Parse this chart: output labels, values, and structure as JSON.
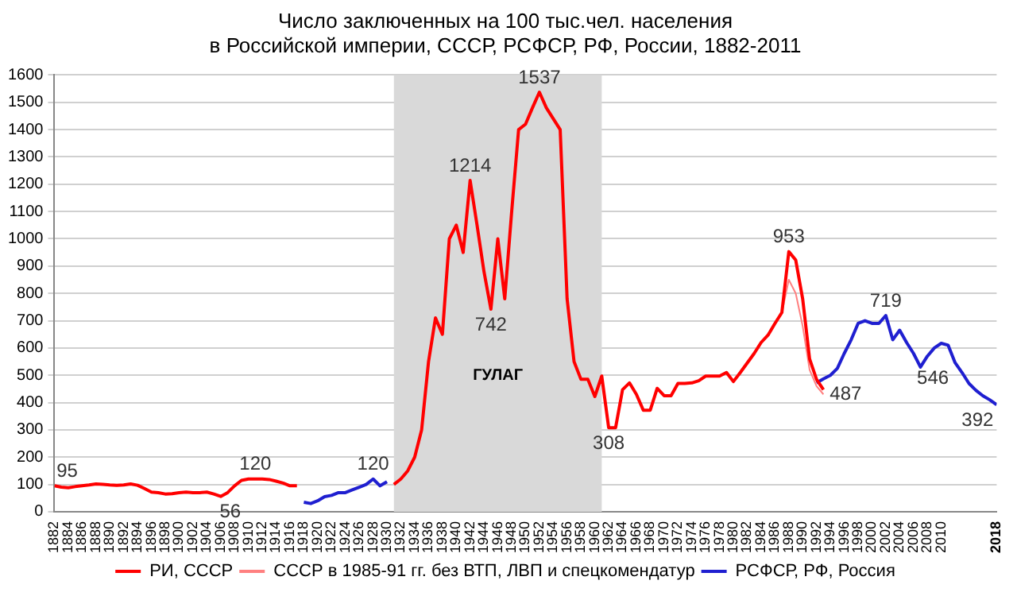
{
  "chart_data": {
    "type": "line",
    "title": [
      "Число заключенных на 100 тыс.чел. населения",
      "в Российской империи, СССР, РСФСР, РФ, России, 1882-2011"
    ],
    "xlim": [
      1882,
      2018
    ],
    "xticks": [
      1882,
      1884,
      1886,
      1888,
      1890,
      1892,
      1894,
      1896,
      1898,
      1900,
      1902,
      1904,
      1906,
      1908,
      1910,
      1912,
      1914,
      1916,
      1918,
      1920,
      1922,
      1924,
      1926,
      1928,
      1930,
      1932,
      1934,
      1936,
      1938,
      1940,
      1942,
      1944,
      1946,
      1948,
      1950,
      1952,
      1954,
      1956,
      1958,
      1960,
      1962,
      1964,
      1966,
      1968,
      1970,
      1972,
      1974,
      1976,
      1978,
      1980,
      1982,
      1984,
      1986,
      1988,
      1990,
      1992,
      1994,
      1996,
      1998,
      2000,
      2002,
      2004,
      2006,
      2008,
      2010,
      2018
    ],
    "ylim": [
      0,
      1600
    ],
    "yticks": [
      0,
      100,
      200,
      300,
      400,
      500,
      600,
      700,
      800,
      900,
      1000,
      1100,
      1200,
      1300,
      1400,
      1500,
      1600
    ],
    "grid": "y",
    "legend": "bottom",
    "marker": "none",
    "line_style": "solid",
    "series": [
      {
        "name": "РИ, СССР",
        "color": "#ff0000",
        "x": [
          1882,
          1883,
          1884,
          1885,
          1886,
          1887,
          1888,
          1889,
          1890,
          1891,
          1892,
          1893,
          1894,
          1895,
          1896,
          1897,
          1898,
          1899,
          1900,
          1901,
          1902,
          1903,
          1904,
          1905,
          1906,
          1907,
          1908,
          1909,
          1910,
          1911,
          1912,
          1913,
          1914,
          1915,
          1916,
          1917,
          1918,
          1931,
          1932,
          1933,
          1934,
          1935,
          1936,
          1937,
          1938,
          1939,
          1940,
          1941,
          1942,
          1943,
          1944,
          1945,
          1946,
          1947,
          1948,
          1949,
          1950,
          1951,
          1952,
          1953,
          1954,
          1955,
          1956,
          1957,
          1958,
          1959,
          1960,
          1961,
          1962,
          1963,
          1964,
          1965,
          1966,
          1967,
          1968,
          1969,
          1970,
          1971,
          1972,
          1973,
          1974,
          1975,
          1976,
          1977,
          1978,
          1979,
          1980,
          1981,
          1982,
          1983,
          1984,
          1985,
          1986,
          1987,
          1988,
          1989,
          1990,
          1991,
          1992,
          1993
        ],
        "values": [
          95,
          90,
          88,
          92,
          95,
          98,
          102,
          100,
          98,
          97,
          98,
          102,
          97,
          85,
          72,
          70,
          65,
          66,
          70,
          72,
          70,
          70,
          72,
          65,
          56,
          70,
          95,
          115,
          120,
          120,
          120,
          118,
          112,
          105,
          95,
          95,
          null,
          100,
          120,
          150,
          200,
          300,
          550,
          710,
          650,
          1000,
          1050,
          950,
          1214,
          1050,
          880,
          742,
          1000,
          780,
          1100,
          1400,
          1420,
          1480,
          1537,
          1480,
          1440,
          1400,
          780,
          550,
          485,
          485,
          422,
          497,
          308,
          308,
          447,
          472,
          430,
          372,
          372,
          452,
          425,
          425,
          470,
          470,
          472,
          480,
          497,
          497,
          497,
          510,
          477,
          510,
          545,
          580,
          620,
          647,
          690,
          730,
          953,
          922,
          780,
          560,
          485,
          447
        ]
      },
      {
        "name": "СССР в 1985-91 гг. без ВТП, ЛВП и спецкомендатур",
        "color": "#ff8080",
        "x": [
          1987,
          1988,
          1989,
          1990,
          1991,
          1992,
          1993
        ],
        "values": [
          730,
          850,
          800,
          680,
          520,
          460,
          430
        ]
      },
      {
        "name": "РСФСР, РФ, Россия",
        "color": "#1f1fd0",
        "x": [
          1918,
          1919,
          1920,
          1921,
          1922,
          1923,
          1924,
          1925,
          1926,
          1927,
          1928,
          1929,
          1930,
          1931,
          1992,
          1993,
          1994,
          1995,
          1996,
          1997,
          1998,
          1999,
          2000,
          2001,
          2002,
          2003,
          2004,
          2005,
          2006,
          2007,
          2008,
          2009,
          2010,
          2011,
          2012,
          2013,
          2014,
          2015,
          2016,
          2017,
          2018
        ],
        "values": [
          35,
          30,
          40,
          55,
          60,
          70,
          70,
          80,
          90,
          100,
          120,
          95,
          110,
          null,
          472,
          487,
          500,
          525,
          580,
          630,
          690,
          700,
          690,
          690,
          719,
          630,
          665,
          620,
          580,
          530,
          570,
          600,
          617,
          610,
          546,
          510,
          470,
          445,
          425,
          410,
          392
        ]
      }
    ],
    "bands": [
      {
        "axis": "x",
        "from": 1931,
        "to": 1961,
        "label": "ГУЛАГ",
        "color": "#d9d9d9"
      }
    ],
    "annotations": [
      {
        "text": "95",
        "x": 1882,
        "y": 95
      },
      {
        "text": "56",
        "x": 1906,
        "y": 56
      },
      {
        "text": "120",
        "x": 1911,
        "y": 120
      },
      {
        "text": "120",
        "x": 1928,
        "y": 120
      },
      {
        "text": "1214",
        "x": 1942,
        "y": 1214
      },
      {
        "text": "742",
        "x": 1945,
        "y": 742
      },
      {
        "text": "1537",
        "x": 1952,
        "y": 1537
      },
      {
        "text": "308",
        "x": 1962,
        "y": 308
      },
      {
        "text": "953",
        "x": 1988,
        "y": 953
      },
      {
        "text": "487",
        "x": 1993,
        "y": 487
      },
      {
        "text": "719",
        "x": 2002,
        "y": 719
      },
      {
        "text": "546",
        "x": 2012,
        "y": 546
      },
      {
        "text": "392",
        "x": 2018,
        "y": 392
      }
    ]
  }
}
